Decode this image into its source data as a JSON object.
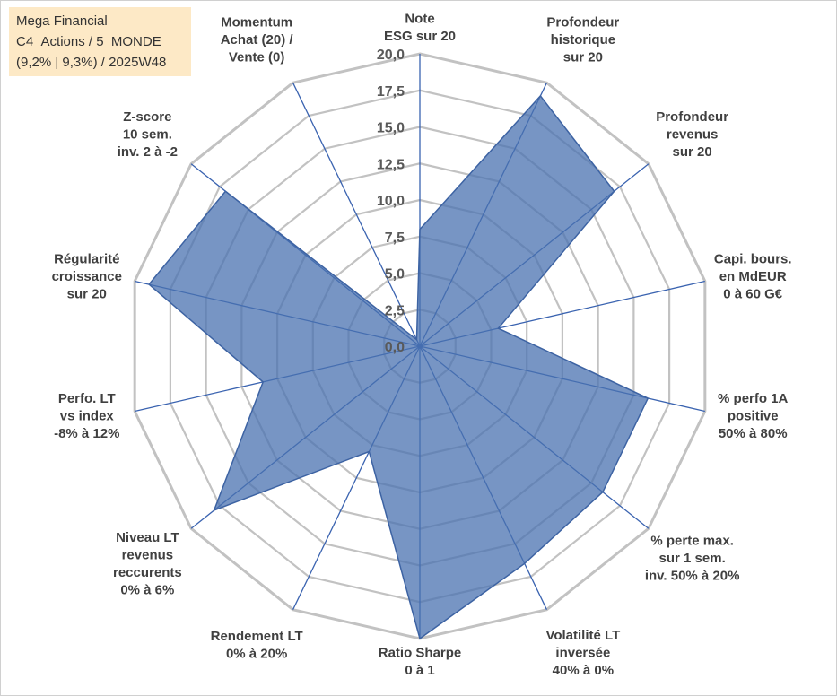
{
  "chart_data": {
    "type": "radar",
    "title_lines": [
      "Mega Financial",
      "C4_Actions / 5_MONDE",
      "(9,2% | 9,3%) / 2025W48"
    ],
    "axes": [
      {
        "label": [
          "Note",
          "ESG sur 20"
        ],
        "value": 8.0
      },
      {
        "label": [
          "Profondeur",
          "historique",
          "sur 20"
        ],
        "value": 19.0
      },
      {
        "label": [
          "Profondeur",
          "revenus",
          "sur 20"
        ],
        "value": 17.0
      },
      {
        "label": [
          "Capi. bours.",
          "en MdEUR",
          "0 à 60 G€"
        ],
        "value": 5.5
      },
      {
        "label": [
          "% perfo 1A",
          "positive",
          "50% à 80%"
        ],
        "value": 16.0
      },
      {
        "label": [
          "% perte max.",
          "sur 1 sem.",
          "inv. 50% à 20%"
        ],
        "value": 16.0
      },
      {
        "label": [
          "Volatilité LT",
          "inversée",
          "40% à 0%"
        ],
        "value": 16.5
      },
      {
        "label": [
          "Ratio Sharpe",
          "0 à 1"
        ],
        "value": 20.0
      },
      {
        "label": [
          "Rendement LT",
          "0% à 20%"
        ],
        "value": 8.0
      },
      {
        "label": [
          "Niveau LT",
          "revenus",
          "reccurents",
          "0% à 6%"
        ],
        "value": 18.0
      },
      {
        "label": [
          "Perfo. LT",
          "vs index",
          "-8% à 12%"
        ],
        "value": 11.0
      },
      {
        "label": [
          "Régularité",
          "croissance",
          "sur 20"
        ],
        "value": 19.0
      },
      {
        "label": [
          "Z-score",
          "10 sem.",
          "inv. 2 à -2"
        ],
        "value": 17.0
      },
      {
        "label": [
          "Momentum",
          "Achat (20) /",
          "Vente (0)"
        ],
        "value": 0.5
      }
    ],
    "rlim": [
      0,
      20
    ],
    "ticks": [
      "0,0",
      "2,5",
      "5,0",
      "7,5",
      "10,0",
      "12,5",
      "15,0",
      "17,5",
      "20,0"
    ],
    "series_color": "#4a72b0"
  }
}
